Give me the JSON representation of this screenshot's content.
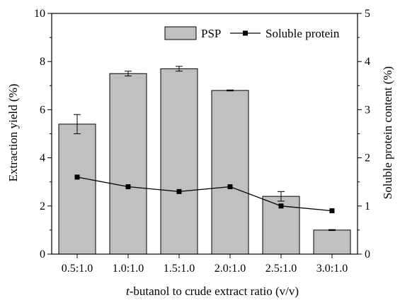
{
  "chart_data": {
    "type": "bar",
    "categories": [
      "0.5:1.0",
      "1.0:1.0",
      "1.5:1.0",
      "2.0:1.0",
      "2.5:1.0",
      "3.0:1.0"
    ],
    "series": [
      {
        "name": "PSP",
        "type": "bar",
        "axis": "left",
        "values": [
          5.4,
          7.5,
          7.7,
          6.8,
          2.4,
          1.0
        ],
        "errors": [
          0.4,
          0.1,
          0.1,
          0.02,
          0.2,
          0.02
        ],
        "color": "#c0c0c0"
      },
      {
        "name": "Soluble protein",
        "type": "line",
        "axis": "right",
        "values": [
          1.6,
          1.4,
          1.3,
          1.4,
          1.0,
          0.9
        ],
        "color": "#000000",
        "marker": "square"
      }
    ],
    "xlabel_italic": "t",
    "xlabel_rest": "-butanol to crude extract ratio (v/v)",
    "ylabel": "Extraction yield (%)",
    "y2label": "Soluble protein content (%)",
    "ylim": [
      0,
      10
    ],
    "y2lim": [
      0,
      5
    ],
    "yticks": [
      "0",
      "2",
      "4",
      "6",
      "8",
      "10"
    ],
    "y2ticks": [
      "0",
      "1",
      "2",
      "3",
      "4",
      "5"
    ],
    "legend_position": "top-right",
    "grid": false
  }
}
